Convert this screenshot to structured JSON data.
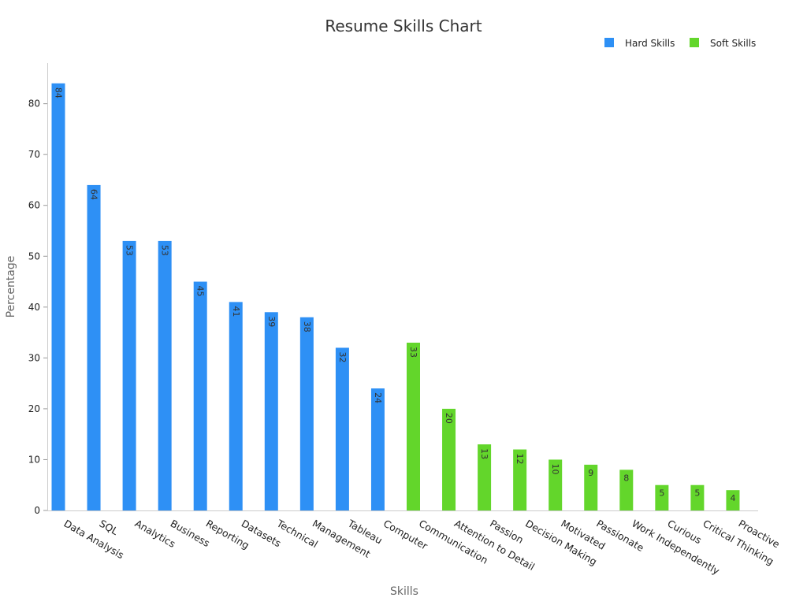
{
  "chart_data": {
    "type": "bar",
    "title": "Resume Skills Chart",
    "xlabel": "Skills",
    "ylabel": "Percentage",
    "ylim": [
      0,
      88
    ],
    "yticks": [
      0,
      10,
      20,
      30,
      40,
      50,
      60,
      70,
      80
    ],
    "legend_position": "top-right",
    "categories": [
      "Data Analysis",
      "SQL",
      "Analytics",
      "Business",
      "Reporting",
      "Datasets",
      "Technical",
      "Management",
      "Tableau",
      "Computer",
      "Communication",
      "Attention to Detail",
      "Passion",
      "Decision Making",
      "Motivated",
      "Passionate",
      "Work Independently",
      "Curious",
      "Critical Thinking",
      "Proactive"
    ],
    "series": [
      {
        "name": "Hard Skills",
        "color": "#2e90f5",
        "values": [
          84,
          64,
          53,
          53,
          45,
          41,
          39,
          38,
          32,
          24,
          null,
          null,
          null,
          null,
          null,
          null,
          null,
          null,
          null,
          null
        ]
      },
      {
        "name": "Soft Skills",
        "color": "#63d62b",
        "values": [
          null,
          null,
          null,
          null,
          null,
          null,
          null,
          null,
          null,
          null,
          33,
          20,
          13,
          12,
          10,
          9,
          8,
          5,
          5,
          4
        ]
      }
    ]
  }
}
